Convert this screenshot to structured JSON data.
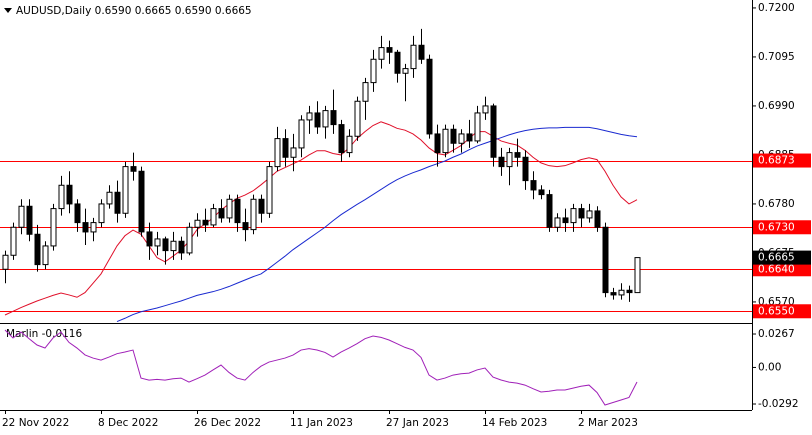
{
  "chart_data": [
    {
      "type": "candlestick",
      "title": "AUDUSD,Daily  0.6590 0.6665 0.6590 0.6665",
      "categories": [
        "22 Nov 2022",
        null,
        null,
        null,
        null,
        null,
        null,
        null,
        null,
        null,
        null,
        null,
        "8 Dec 2022",
        null,
        null,
        null,
        null,
        null,
        null,
        null,
        null,
        null,
        null,
        null,
        "26 Dec 2022",
        null,
        null,
        null,
        null,
        null,
        null,
        null,
        null,
        null,
        null,
        null,
        "11 Jan 2023",
        null,
        null,
        null,
        null,
        null,
        null,
        null,
        null,
        null,
        null,
        null,
        "27 Jan 2023",
        null,
        null,
        null,
        null,
        null,
        null,
        null,
        null,
        null,
        null,
        null,
        "14 Feb 2023",
        null,
        null,
        null,
        null,
        null,
        null,
        null,
        null,
        null,
        null,
        null,
        "2 Mar 2023",
        null,
        null,
        null,
        null,
        null,
        null,
        null
      ],
      "open": [
        0.664,
        0.667,
        0.673,
        0.6775,
        0.6715,
        0.665,
        0.669,
        0.677,
        0.682,
        0.678,
        0.674,
        0.672,
        0.674,
        0.678,
        0.6805,
        0.676,
        0.686,
        0.685,
        0.672,
        0.669,
        0.6705,
        0.668,
        0.67,
        0.6675,
        0.673,
        0.6745,
        0.6735,
        0.677,
        0.675,
        0.679,
        0.674,
        0.6725,
        0.679,
        0.676,
        0.686,
        0.692,
        0.688,
        0.69,
        0.696,
        0.6975,
        0.6945,
        0.698,
        0.695,
        0.689,
        0.6925,
        0.7,
        0.704,
        0.709,
        0.7115,
        0.7105,
        0.706,
        0.707,
        0.712,
        0.709,
        0.693,
        0.689,
        0.694,
        0.691,
        0.693,
        0.6915,
        0.6975,
        0.699,
        0.688,
        0.686,
        0.689,
        0.688,
        0.683,
        0.681,
        0.68,
        0.673,
        0.675,
        0.674,
        0.677,
        0.675,
        0.6765,
        0.673,
        0.659,
        0.6585,
        0.6595,
        0.659
      ],
      "high": [
        0.668,
        0.674,
        0.679,
        0.679,
        0.6735,
        0.67,
        0.678,
        0.684,
        0.685,
        0.679,
        0.677,
        0.675,
        0.679,
        0.682,
        0.683,
        0.687,
        0.689,
        0.686,
        0.674,
        0.672,
        0.671,
        0.672,
        0.671,
        0.674,
        0.676,
        0.677,
        0.678,
        0.679,
        0.68,
        0.68,
        0.677,
        0.68,
        0.68,
        0.687,
        0.6945,
        0.694,
        0.693,
        0.697,
        0.699,
        0.7,
        0.699,
        0.7025,
        0.696,
        0.694,
        0.701,
        0.705,
        0.711,
        0.714,
        0.713,
        0.711,
        0.708,
        0.714,
        0.7155,
        0.71,
        0.695,
        0.695,
        0.695,
        0.694,
        0.696,
        0.699,
        0.701,
        0.6995,
        0.69,
        0.69,
        0.692,
        0.6895,
        0.685,
        0.682,
        0.681,
        0.676,
        0.677,
        0.678,
        0.678,
        0.678,
        0.6775,
        0.674,
        0.66,
        0.661,
        0.6605,
        0.6665
      ],
      "low": [
        0.661,
        0.666,
        0.6715,
        0.67,
        0.6635,
        0.664,
        0.668,
        0.6755,
        0.676,
        0.672,
        0.6692,
        0.67,
        0.673,
        0.677,
        0.674,
        0.675,
        0.683,
        0.671,
        0.666,
        0.667,
        0.665,
        0.666,
        0.666,
        0.667,
        0.671,
        0.672,
        0.673,
        0.674,
        0.674,
        0.672,
        0.67,
        0.6715,
        0.674,
        0.675,
        0.685,
        0.686,
        0.685,
        0.688,
        0.693,
        0.693,
        0.692,
        0.693,
        0.687,
        0.688,
        0.6915,
        0.696,
        0.702,
        0.707,
        0.708,
        0.704,
        0.7,
        0.705,
        0.708,
        0.692,
        0.686,
        0.688,
        0.689,
        0.689,
        0.69,
        0.691,
        0.696,
        0.686,
        0.684,
        0.682,
        0.686,
        0.681,
        0.679,
        0.679,
        0.672,
        0.672,
        0.672,
        0.672,
        0.673,
        0.674,
        0.672,
        0.658,
        0.6575,
        0.6575,
        0.657,
        0.659
      ],
      "close": [
        0.667,
        0.673,
        0.6775,
        0.6715,
        0.665,
        0.669,
        0.677,
        0.682,
        0.678,
        0.674,
        0.672,
        0.674,
        0.678,
        0.6805,
        0.676,
        0.686,
        0.685,
        0.672,
        0.669,
        0.6705,
        0.668,
        0.67,
        0.6675,
        0.673,
        0.6745,
        0.6735,
        0.677,
        0.675,
        0.679,
        0.674,
        0.6725,
        0.679,
        0.676,
        0.686,
        0.692,
        0.688,
        0.69,
        0.696,
        0.6975,
        0.6945,
        0.698,
        0.695,
        0.689,
        0.6925,
        0.7,
        0.704,
        0.709,
        0.7115,
        0.7105,
        0.706,
        0.707,
        0.712,
        0.709,
        0.693,
        0.689,
        0.694,
        0.691,
        0.693,
        0.6915,
        0.6975,
        0.699,
        0.688,
        0.686,
        0.689,
        0.688,
        0.683,
        0.681,
        0.68,
        0.673,
        0.675,
        0.674,
        0.677,
        0.675,
        0.6765,
        0.673,
        0.659,
        0.6585,
        0.6595,
        0.659,
        0.6665
      ],
      "up_color": "#ffffff",
      "down_color": "#000000",
      "series": [
        {
          "color": "#e0102a",
          "values": [
            0.6542,
            0.655,
            0.6558,
            0.6565,
            0.6572,
            0.6578,
            0.6584,
            0.6589,
            0.6585,
            0.658,
            0.659,
            0.661,
            0.663,
            0.666,
            0.669,
            0.6712,
            0.6724,
            0.6715,
            0.669,
            0.6665,
            0.6656,
            0.6668,
            0.6681,
            0.67,
            0.6725,
            0.6737,
            0.675,
            0.6767,
            0.678,
            0.6792,
            0.6799,
            0.6808,
            0.6821,
            0.6835,
            0.685,
            0.6858,
            0.6866,
            0.6874,
            0.6885,
            0.6894,
            0.6894,
            0.6888,
            0.6885,
            0.69,
            0.692,
            0.6935,
            0.6948,
            0.6956,
            0.695,
            0.6942,
            0.6938,
            0.693,
            0.6917,
            0.69,
            0.6888,
            0.6885,
            0.6895,
            0.6905,
            0.692,
            0.6935,
            0.6935,
            0.6925,
            0.6915,
            0.691,
            0.6906,
            0.6895,
            0.688,
            0.6868,
            0.6862,
            0.686,
            0.6862,
            0.6868,
            0.6875,
            0.6879,
            0.6875,
            0.685,
            0.682,
            0.6795,
            0.678,
            0.6789
          ]
        },
        {
          "color": "#1a2ad0",
          "values": [
            null,
            null,
            null,
            null,
            null,
            null,
            null,
            null,
            null,
            null,
            null,
            null,
            null,
            null,
            0.6528,
            0.6535,
            0.6543,
            0.6549,
            0.6553,
            0.6557,
            0.6562,
            0.6567,
            0.6572,
            0.6578,
            0.6584,
            0.6588,
            0.6592,
            0.6597,
            0.6603,
            0.661,
            0.6617,
            0.6624,
            0.663,
            0.6642,
            0.6655,
            0.6668,
            0.6682,
            0.6694,
            0.6706,
            0.6718,
            0.673,
            0.6744,
            0.6757,
            0.6768,
            0.6779,
            0.6789,
            0.68,
            0.6811,
            0.6822,
            0.6832,
            0.684,
            0.6847,
            0.6853,
            0.686,
            0.6866,
            0.6872,
            0.688,
            0.6887,
            0.6896,
            0.6904,
            0.691,
            0.6916,
            0.6922,
            0.6928,
            0.6933,
            0.6937,
            0.694,
            0.6942,
            0.6943,
            0.6943,
            0.6944,
            0.6944,
            0.6944,
            0.6944,
            0.6941,
            0.6937,
            0.6933,
            0.6929,
            0.6926,
            0.6924
          ]
        }
      ],
      "ylim": [
        0.6527,
        0.7217
      ],
      "yticks": [
        {
          "value": 0.72,
          "label": "0.7200"
        },
        0.7095,
        {
          "value": 0.699,
          "label": "0.6990"
        },
        0.6885,
        {
          "value": 0.678,
          "label": "0.6780"
        },
        0.6675,
        {
          "value": 0.657,
          "label": "0.6570"
        }
      ],
      "levels": [
        {
          "value": 0.6873,
          "label": "0.6873"
        },
        {
          "value": 0.673,
          "label": "0.6730"
        },
        {
          "value": 0.664,
          "label": "0.6640"
        },
        {
          "value": 0.655,
          "label": "0.6550"
        }
      ],
      "level_color": "#ff0000",
      "last_price": {
        "value": 0.6665,
        "label": "0.6665"
      }
    },
    {
      "type": "line",
      "title": "Marlin -0.0116",
      "series": [
        {
          "color": "#a020b8",
          "values": [
            0.0299,
            0.0235,
            0.0283,
            0.023,
            0.0179,
            0.0155,
            0.0235,
            0.0283,
            0.02,
            0.0155,
            0.01,
            0.0075,
            0.0059,
            0.0083,
            0.011,
            0.0123,
            0.0139,
            -0.0085,
            -0.0101,
            -0.0095,
            -0.0101,
            -0.009,
            -0.0085,
            -0.0117,
            -0.009,
            -0.0061,
            -0.002,
            0.0019,
            -0.004,
            -0.0085,
            -0.0101,
            -0.004,
            0.001,
            0.0043,
            0.0059,
            0.0075,
            0.0099,
            0.0139,
            0.015,
            0.0139,
            0.012,
            0.0083,
            0.0123,
            0.0155,
            0.019,
            0.023,
            0.0251,
            0.024,
            0.0219,
            0.019,
            0.016,
            0.0139,
            0.008,
            -0.0061,
            -0.0101,
            -0.0085,
            -0.0061,
            -0.005,
            -0.0045,
            -0.002,
            -0.0005,
            -0.0077,
            -0.01,
            -0.0117,
            -0.0125,
            -0.0141,
            -0.017,
            -0.0196,
            -0.019,
            -0.018,
            -0.018,
            -0.0165,
            -0.015,
            -0.0141,
            -0.02,
            -0.03,
            -0.028,
            -0.026,
            -0.024,
            -0.0116
          ]
        }
      ],
      "ylim": [
        -0.034,
        0.0347
      ],
      "yticks": [
        0.0267,
        {
          "value": 0,
          "label": "0.00"
        },
        -0.0292
      ]
    }
  ]
}
